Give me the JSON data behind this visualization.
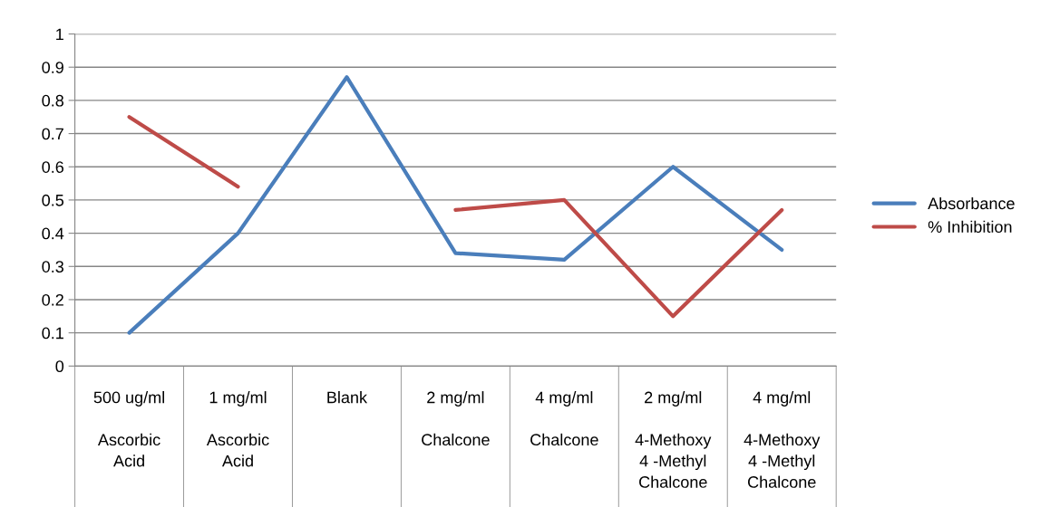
{
  "chart_data": {
    "type": "line",
    "categories": [
      "500 ug/ml\n\nAscorbic\nAcid",
      "1 mg/ml\n\nAscorbic\nAcid",
      "Blank",
      "2 mg/ml\n\nChalcone",
      "4 mg/ml\n\nChalcone",
      "2 mg/ml\n\n4-Methoxy\n4 -Methyl\nChalcone",
      "4 mg/ml\n\n4-Methoxy\n4 -Methyl\nChalcone"
    ],
    "series": [
      {
        "name": "Absorbance",
        "color": "#4a7ebb",
        "values": [
          0.1,
          0.4,
          0.87,
          0.34,
          0.32,
          0.6,
          0.35
        ]
      },
      {
        "name": "% Inhibition",
        "color": "#be4b48",
        "values": [
          0.75,
          0.54,
          null,
          0.47,
          0.5,
          0.15,
          0.47
        ]
      }
    ],
    "ylim": [
      0,
      1
    ],
    "yticks": [
      0,
      0.1,
      0.2,
      0.3,
      0.4,
      0.5,
      0.6,
      0.7,
      0.8,
      0.9,
      1
    ],
    "grid": "y",
    "legend": "right",
    "marker": "none",
    "line_style": "solid"
  }
}
